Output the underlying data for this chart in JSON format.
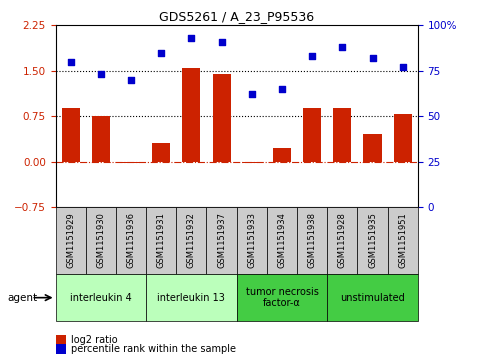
{
  "title": "GDS5261 / A_23_P95536",
  "samples": [
    "GSM1151929",
    "GSM1151930",
    "GSM1151936",
    "GSM1151931",
    "GSM1151932",
    "GSM1151937",
    "GSM1151933",
    "GSM1151934",
    "GSM1151938",
    "GSM1151928",
    "GSM1151935",
    "GSM1151951"
  ],
  "log2_ratio": [
    0.88,
    0.76,
    -0.02,
    0.3,
    1.55,
    1.45,
    -0.02,
    0.22,
    0.88,
    0.88,
    0.45,
    0.78
  ],
  "percentile": [
    80,
    73,
    70,
    85,
    93,
    91,
    62,
    65,
    83,
    88,
    82,
    77
  ],
  "agents": [
    {
      "label": "interleukin 4",
      "start": 0,
      "end": 3,
      "color": "#bbffbb"
    },
    {
      "label": "interleukin 13",
      "start": 3,
      "end": 6,
      "color": "#bbffbb"
    },
    {
      "label": "tumor necrosis\nfactor-α",
      "start": 6,
      "end": 9,
      "color": "#44cc44"
    },
    {
      "label": "unstimulated",
      "start": 9,
      "end": 12,
      "color": "#44cc44"
    }
  ],
  "bar_color": "#cc2200",
  "dot_color": "#0000cc",
  "ylim_left": [
    -0.75,
    2.25
  ],
  "ylim_right": [
    0,
    100
  ],
  "yticks_left": [
    -0.75,
    0,
    0.75,
    1.5,
    2.25
  ],
  "yticks_right": [
    0,
    25,
    50,
    75,
    100
  ],
  "hline_y": [
    0.75,
    1.5
  ],
  "zero_line_y": 0,
  "legend_items": [
    {
      "label": "log2 ratio",
      "color": "#cc2200"
    },
    {
      "label": "percentile rank within the sample",
      "color": "#0000cc"
    }
  ],
  "agent_label": "agent",
  "sample_bg_color": "#cccccc",
  "fig_bg": "#ffffff"
}
